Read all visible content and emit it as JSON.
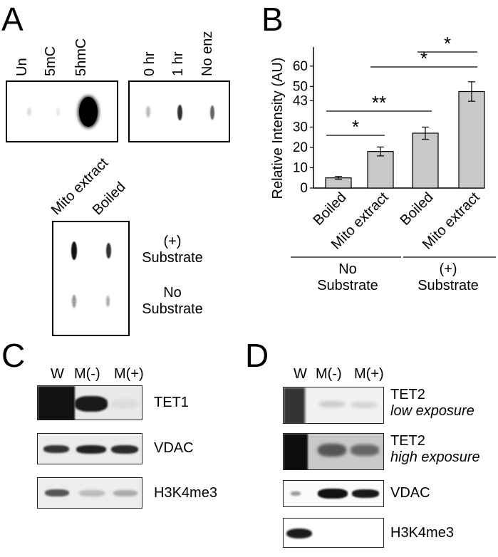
{
  "panel_a": {
    "letter": "A",
    "blot1_lanes": [
      "Un",
      "5mC",
      "5hmC"
    ],
    "blot2_lanes": [
      "0 hr",
      "1 hr",
      "No enz"
    ],
    "blot3_lanes": [
      "Mito extract",
      "Boiled"
    ],
    "blot3_rows": [
      {
        "line1": "(+)",
        "line2": "Substrate"
      },
      {
        "line1": "No",
        "line2": "Substrate"
      }
    ]
  },
  "panel_b": {
    "letter": "B",
    "sig": [
      "*",
      "**",
      "*",
      "*"
    ],
    "group_labels": [
      {
        "line1": "No",
        "line2": "Substrate"
      },
      {
        "line1": "(+)",
        "line2": "Substrate"
      }
    ]
  },
  "chart_data": {
    "type": "bar",
    "categories": [
      "Boiled",
      "Mito extract",
      "Boiled",
      "Mito extract"
    ],
    "values": [
      5,
      18,
      27,
      47.5
    ],
    "errors": [
      0.7,
      2.2,
      3.0,
      4.8
    ],
    "ylabel": "Relative Intensity (AU)",
    "ylim": [
      0,
      68
    ],
    "yticks": [
      0,
      10,
      20,
      30,
      43,
      50,
      60
    ],
    "bar_color": "#c8c8c8"
  },
  "panel_c": {
    "letter": "C",
    "lanes": [
      "W",
      "M(-)",
      "M(+)"
    ],
    "rows": [
      "TET1",
      "VDAC",
      "H3K4me3"
    ]
  },
  "panel_d": {
    "letter": "D",
    "lanes": [
      "W",
      "M(-)",
      "M(+)"
    ],
    "rows": [
      {
        "name": "TET2",
        "note": "low exposure"
      },
      {
        "name": "TET2",
        "note": "high exposure"
      },
      {
        "name": "VDAC",
        "note": ""
      },
      {
        "name": "H3K4me3",
        "note": ""
      }
    ]
  }
}
